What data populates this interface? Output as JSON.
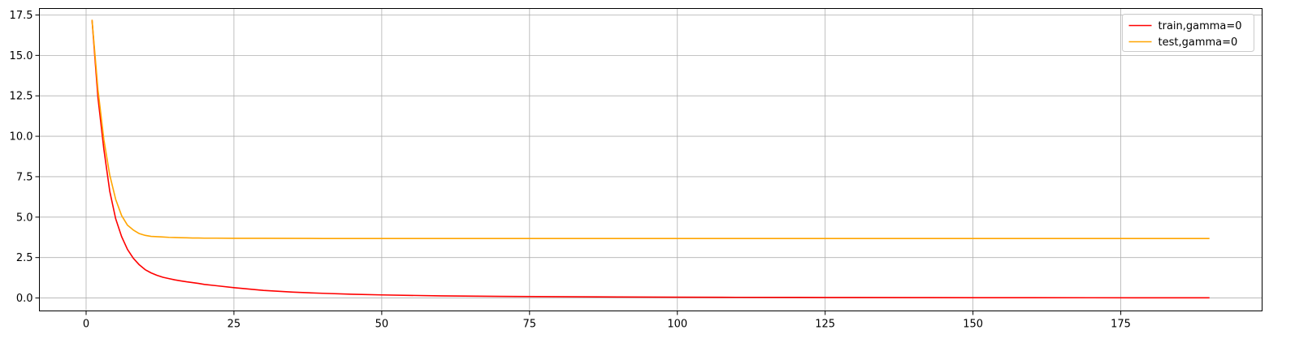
{
  "chart_data": {
    "type": "line",
    "title": "",
    "xlabel": "",
    "ylabel": "",
    "xlim": [
      -7.9,
      198.9
    ],
    "ylim": [
      -0.8,
      17.9
    ],
    "xticks": [
      0,
      25,
      50,
      75,
      100,
      125,
      150,
      175
    ],
    "yticks": [
      0.0,
      2.5,
      5.0,
      7.5,
      10.0,
      12.5,
      15.0,
      17.5
    ],
    "xtick_labels": [
      "0",
      "25",
      "50",
      "75",
      "100",
      "125",
      "150",
      "175"
    ],
    "ytick_labels": [
      "0.0",
      "2.5",
      "5.0",
      "7.5",
      "10.0",
      "12.5",
      "15.0",
      "17.5"
    ],
    "grid": true,
    "legend_position": "top-right",
    "series": [
      {
        "name": "train,gamma=0",
        "color": "#ff0000",
        "x": [
          1,
          2,
          3,
          4,
          5,
          6,
          7,
          8,
          9,
          10,
          11,
          12,
          13,
          14,
          15,
          16,
          17,
          18,
          19,
          20,
          22,
          25,
          30,
          35,
          40,
          45,
          50,
          60,
          70,
          80,
          90,
          100,
          110,
          120,
          130,
          140,
          150,
          160,
          170,
          180,
          190
        ],
        "y": [
          17.2,
          12.4,
          9.2,
          6.6,
          4.9,
          3.8,
          3.0,
          2.45,
          2.05,
          1.75,
          1.55,
          1.4,
          1.28,
          1.2,
          1.12,
          1.06,
          1.0,
          0.95,
          0.9,
          0.84,
          0.76,
          0.64,
          0.47,
          0.36,
          0.29,
          0.23,
          0.19,
          0.13,
          0.1,
          0.08,
          0.06,
          0.05,
          0.04,
          0.035,
          0.03,
          0.025,
          0.02,
          0.018,
          0.015,
          0.012,
          0.01
        ]
      },
      {
        "name": "test,gamma=0",
        "color": "#ffa500",
        "x": [
          1,
          2,
          3,
          4,
          5,
          6,
          7,
          8,
          9,
          10,
          11,
          12,
          13,
          14,
          15,
          16,
          17,
          18,
          19,
          20,
          22,
          25,
          30,
          40,
          50,
          75,
          100,
          125,
          150,
          175,
          190
        ],
        "y": [
          17.2,
          12.9,
          9.8,
          7.6,
          6.1,
          5.1,
          4.5,
          4.2,
          3.98,
          3.87,
          3.81,
          3.79,
          3.77,
          3.75,
          3.74,
          3.73,
          3.72,
          3.71,
          3.71,
          3.7,
          3.7,
          3.69,
          3.69,
          3.68,
          3.68,
          3.68,
          3.68,
          3.68,
          3.68,
          3.68,
          3.68
        ]
      }
    ]
  }
}
